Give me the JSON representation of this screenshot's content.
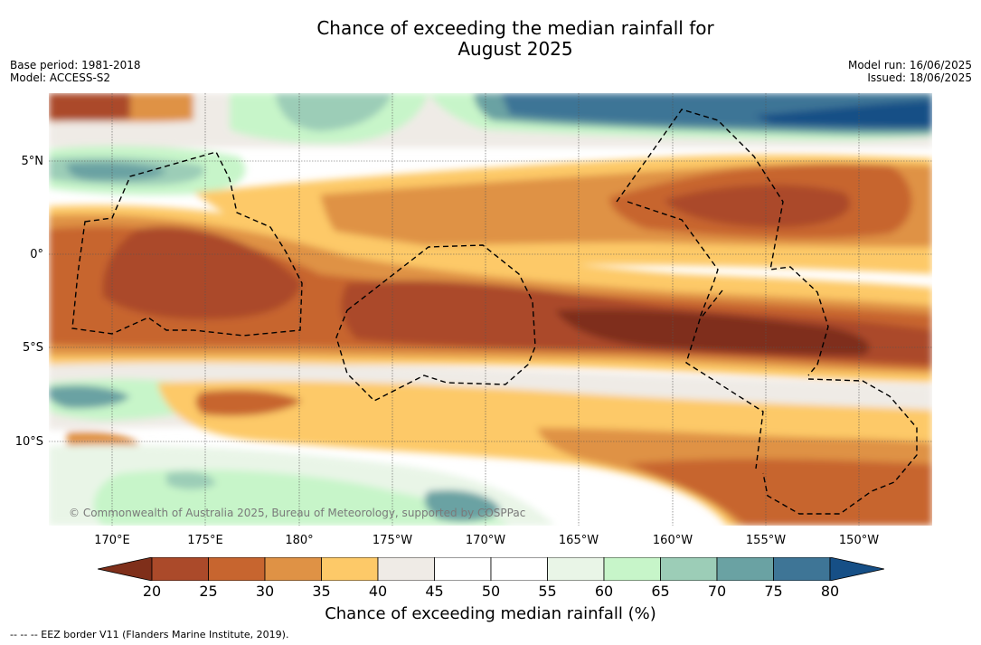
{
  "title": {
    "line1": "Chance of exceeding the median rainfall for",
    "line2": "August 2025"
  },
  "meta_left": {
    "base_period": "Base period: 1981-2018",
    "model": "Model: ACCESS-S2"
  },
  "meta_right": {
    "model_run": "Model run: 16/06/2025",
    "issued": "Issued: 18/06/2025"
  },
  "copyright": "© Commonwealth of Australia 2025, Bureau of Meteorology, supported by COSPPac",
  "lat_labels": [
    "5°N",
    "0°",
    "5°S",
    "10°S"
  ],
  "lon_labels": [
    "170°E",
    "175°E",
    "180°",
    "175°W",
    "170°W",
    "165°W",
    "160°W",
    "155°W",
    "150°W"
  ],
  "colorbar": {
    "ticks": [
      "20",
      "25",
      "30",
      "35",
      "40",
      "45",
      "50",
      "55",
      "60",
      "65",
      "70",
      "75",
      "80"
    ],
    "colors": [
      "#7f2f1a",
      "#ab4a2a",
      "#c7652f",
      "#df9245",
      "#fdc968",
      "#efebe6",
      "#ffffff",
      "#ffffff",
      "#e9f5e7",
      "#c7f5c9",
      "#9ccdb7",
      "#6aa2a3",
      "#3e7596",
      "#164f86"
    ],
    "label": "Chance of exceeding median rainfall (%)"
  },
  "footnote": "-- -- -- EEZ border V11 (Flanders Marine Institute, 2019).",
  "chart_data": {
    "type": "heatmap",
    "title": "Chance of exceeding the median rainfall for August 2025",
    "variable": "Chance of exceeding median rainfall (%)",
    "value_range": [
      20,
      80
    ],
    "lon_range": [
      "167°E",
      "147°W"
    ],
    "lat_range": [
      "14°S",
      "8°N"
    ],
    "bands": [
      {
        "region": "north of 7°N, 172°W–147°W",
        "range": "70-80%+"
      },
      {
        "region": "5°N–8°N, 167°E–172°E",
        "range": "60-75%"
      },
      {
        "region": "1°N–4°N, 180°–147°W",
        "range": "25-40%"
      },
      {
        "region": "0°–5°S, 167°E–147°W",
        "range": "20-35%"
      },
      {
        "region": "6°S–9°S, 167°E–147°W",
        "range": "45-60%"
      },
      {
        "region": "10°S–14°S, 165°W–147°W",
        "range": "25-40%"
      },
      {
        "region": "11°S–14°S, 170°E–170°W",
        "range": "55-70%"
      }
    ]
  }
}
